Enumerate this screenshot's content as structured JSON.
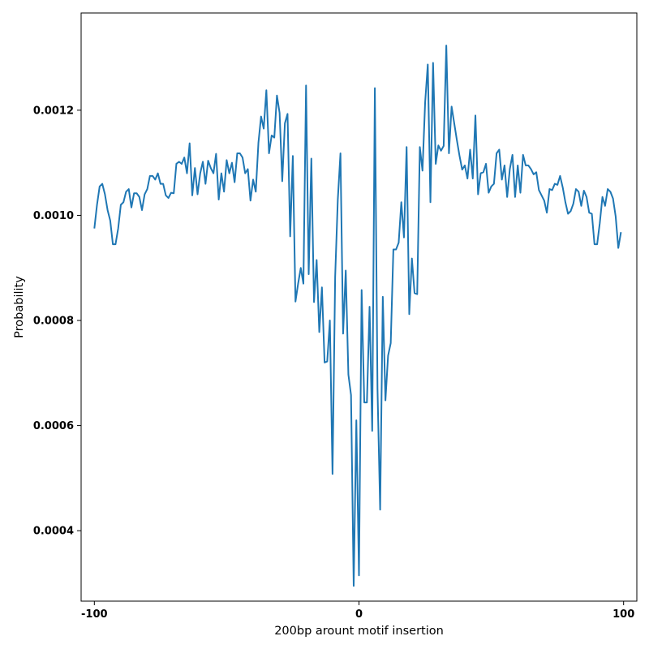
{
  "chart_data": {
    "type": "line",
    "title": "",
    "xlabel": "200bp arount motif insertion",
    "ylabel": "Probability",
    "xlim": [
      -105,
      105
    ],
    "ylim": [
      0.000266,
      0.001385
    ],
    "xticks": [
      -100,
      0,
      100
    ],
    "xtick_labels": [
      "-100",
      "0",
      "100"
    ],
    "yticks": [
      0.0004,
      0.0006,
      0.0008,
      0.001,
      0.0012
    ],
    "ytick_labels": [
      "0.0004",
      "0.0006",
      "0.0008",
      "0.0010",
      "0.0012"
    ],
    "grid": false,
    "legend": "none",
    "line_color": "#1f77b4",
    "series": [
      {
        "x": [
          -100,
          -99,
          -98,
          -97,
          -96,
          -95,
          -94,
          -93,
          -92,
          -91,
          -90,
          -89,
          -88,
          -87,
          -86,
          -85,
          -84,
          -83,
          -82,
          -81,
          -80,
          -79,
          -78,
          -77,
          -76,
          -75,
          -74,
          -73,
          -72,
          -71,
          -70,
          -69,
          -68,
          -67,
          -66,
          -65,
          -64,
          -63,
          -62,
          -61,
          -60,
          -59,
          -58,
          -57,
          -56,
          -55,
          -54,
          -53,
          -52,
          -51,
          -50,
          -49,
          -48,
          -47,
          -46,
          -45,
          -44,
          -43,
          -42,
          -41,
          -40,
          -39,
          -38,
          -37,
          -36,
          -35,
          -34,
          -33,
          -32,
          -31,
          -30,
          -29,
          -28,
          -27,
          -26,
          -25,
          -24,
          -23,
          -22,
          -21,
          -20,
          -19,
          -18,
          -17,
          -16,
          -15,
          -14,
          -13,
          -12,
          -11,
          -10,
          -9,
          -8,
          -7,
          -6,
          -5,
          -4,
          -3,
          -2,
          -1,
          0,
          1,
          2,
          3,
          4,
          5,
          6,
          7,
          8,
          9,
          10,
          11,
          12,
          13,
          14,
          15,
          16,
          17,
          18,
          19,
          20,
          21,
          22,
          23,
          24,
          25,
          26,
          27,
          28,
          29,
          30,
          31,
          32,
          33,
          34,
          35,
          36,
          37,
          38,
          39,
          40,
          41,
          42,
          43,
          44,
          45,
          46,
          47,
          48,
          49,
          50,
          51,
          52,
          53,
          54,
          55,
          56,
          57,
          58,
          59,
          60,
          61,
          62,
          63,
          64,
          65,
          66,
          67,
          68,
          69,
          70,
          71,
          72,
          73,
          74,
          75,
          76,
          77,
          78,
          79,
          80,
          81,
          82,
          83,
          84,
          85,
          86,
          87,
          88,
          89,
          90,
          91,
          92,
          93,
          94,
          95,
          96,
          97,
          98,
          99
        ],
        "values": [
          0.000975,
          0.00102,
          0.001055,
          0.00106,
          0.00104,
          0.00101,
          0.00099,
          0.000945,
          0.000945,
          0.000975,
          0.00102,
          0.001025,
          0.001045,
          0.00105,
          0.001015,
          0.001042,
          0.001042,
          0.001035,
          0.00101,
          0.00104,
          0.00105,
          0.001075,
          0.001075,
          0.001068,
          0.00108,
          0.00106,
          0.00106,
          0.001038,
          0.001033,
          0.001043,
          0.001042,
          0.001098,
          0.001102,
          0.001098,
          0.00111,
          0.00108,
          0.001137,
          0.001038,
          0.00109,
          0.00104,
          0.00108,
          0.001102,
          0.00106,
          0.001104,
          0.00109,
          0.00108,
          0.001117,
          0.00103,
          0.00108,
          0.001045,
          0.001105,
          0.00108,
          0.0011,
          0.001063,
          0.001118,
          0.001118,
          0.00111,
          0.00108,
          0.001088,
          0.001028,
          0.001068,
          0.001045,
          0.001138,
          0.001188,
          0.001165,
          0.001238,
          0.001118,
          0.001152,
          0.001148,
          0.001228,
          0.001195,
          0.001065,
          0.001175,
          0.001193,
          0.00096,
          0.001113,
          0.000836,
          0.00087,
          0.0009,
          0.00087,
          0.001247,
          0.000888,
          0.001108,
          0.000835,
          0.000915,
          0.000778,
          0.000863,
          0.00072,
          0.000722,
          0.0008,
          0.000508,
          0.000883,
          0.00103,
          0.001118,
          0.000775,
          0.000895,
          0.000697,
          0.000658,
          0.000295,
          0.00061,
          0.000315,
          0.000858,
          0.000644,
          0.000644,
          0.000826,
          0.00059,
          0.001242,
          0.00067,
          0.00044,
          0.000845,
          0.000648,
          0.000733,
          0.000757,
          0.000935,
          0.000935,
          0.000948,
          0.001025,
          0.000958,
          0.00113,
          0.000812,
          0.000918,
          0.000852,
          0.00085,
          0.00113,
          0.001085,
          0.001215,
          0.001287,
          0.001025,
          0.00129,
          0.001098,
          0.001133,
          0.001123,
          0.001132,
          0.001323,
          0.001118,
          0.001207,
          0.001175,
          0.001143,
          0.001113,
          0.001087,
          0.001095,
          0.00107,
          0.001125,
          0.00107,
          0.00119,
          0.00104,
          0.00108,
          0.001082,
          0.001098,
          0.001043,
          0.001055,
          0.00106,
          0.001118,
          0.001125,
          0.001068,
          0.001095,
          0.001035,
          0.001088,
          0.001115,
          0.001035,
          0.001095,
          0.001043,
          0.001115,
          0.001095,
          0.001095,
          0.001088,
          0.001078,
          0.001082,
          0.001048,
          0.001038,
          0.001028,
          0.001005,
          0.00105,
          0.001048,
          0.00106,
          0.001058,
          0.001075,
          0.001053,
          0.001025,
          0.001003,
          0.001008,
          0.001022,
          0.00105,
          0.001045,
          0.001018,
          0.001047,
          0.001035,
          0.001005,
          0.001003,
          0.000945,
          0.000945,
          0.000985,
          0.001035,
          0.001018,
          0.00105,
          0.001045,
          0.001032,
          0.000998,
          0.000938,
          0.000968
        ]
      }
    ]
  }
}
